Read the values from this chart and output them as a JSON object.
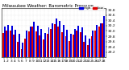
{
  "title": "Milwaukee Weather: Barometric Pressure",
  "legend_high": "High",
  "legend_low": "Low",
  "background_color": "#ffffff",
  "high_color": "#0000dd",
  "low_color": "#dd0000",
  "ylim_min": 29.0,
  "ylim_max": 30.85,
  "ytick_labels": [
    "29.2",
    "29.4",
    "29.6",
    "29.8",
    "30.0",
    "30.2",
    "30.4",
    "30.6",
    "30.8"
  ],
  "ytick_vals": [
    29.2,
    29.4,
    29.6,
    29.8,
    30.0,
    30.2,
    30.4,
    30.6,
    30.8
  ],
  "x_labels": [
    "1",
    "2",
    "3",
    "4",
    "5",
    "6",
    "7",
    "8",
    "9",
    "10",
    "11",
    "12",
    "13",
    "14",
    "15",
    "16",
    "17",
    "18",
    "19",
    "20",
    "21",
    "22",
    "23",
    "24",
    "25",
    "26",
    "27",
    "28"
  ],
  "highs": [
    30.15,
    30.22,
    30.2,
    30.05,
    29.88,
    29.55,
    30.02,
    30.15,
    30.35,
    30.2,
    30.08,
    29.92,
    30.12,
    30.3,
    30.48,
    30.38,
    30.22,
    30.05,
    29.88,
    30.08,
    30.2,
    30.12,
    29.82,
    29.7,
    30.02,
    30.22,
    30.3,
    30.55
  ],
  "lows": [
    29.92,
    30.02,
    30.02,
    29.85,
    29.58,
    29.32,
    29.7,
    29.98,
    30.15,
    29.98,
    29.82,
    29.68,
    29.9,
    30.08,
    30.25,
    30.15,
    29.95,
    29.8,
    29.62,
    29.85,
    30.02,
    29.95,
    29.58,
    29.48,
    29.8,
    30.02,
    30.15,
    30.3
  ],
  "title_fontsize": 4.0,
  "tick_fontsize": 3.2,
  "bar_width": 0.42,
  "dpi": 100
}
